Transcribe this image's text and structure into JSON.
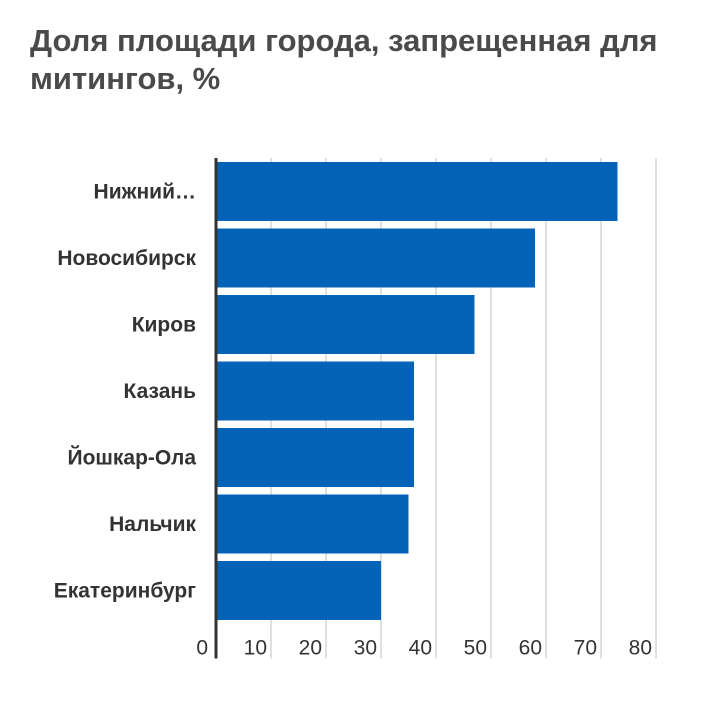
{
  "chart_data": {
    "type": "bar",
    "orientation": "horizontal",
    "title": "Доля площади города, запрещенная для митингов, %",
    "categories": [
      "Нижний…",
      "Новосибирск",
      "Киров",
      "Казань",
      "Йошкар-Ола",
      "Нальчик",
      "Екатеринбург"
    ],
    "values": [
      73,
      58,
      47,
      36,
      36,
      35,
      30
    ],
    "xlim": [
      0,
      80
    ],
    "xticks": [
      0,
      10,
      20,
      30,
      40,
      50,
      60,
      70,
      80
    ],
    "xlabel": "",
    "ylabel": "",
    "grid": "vertical",
    "bar_color": "#0563b7"
  }
}
